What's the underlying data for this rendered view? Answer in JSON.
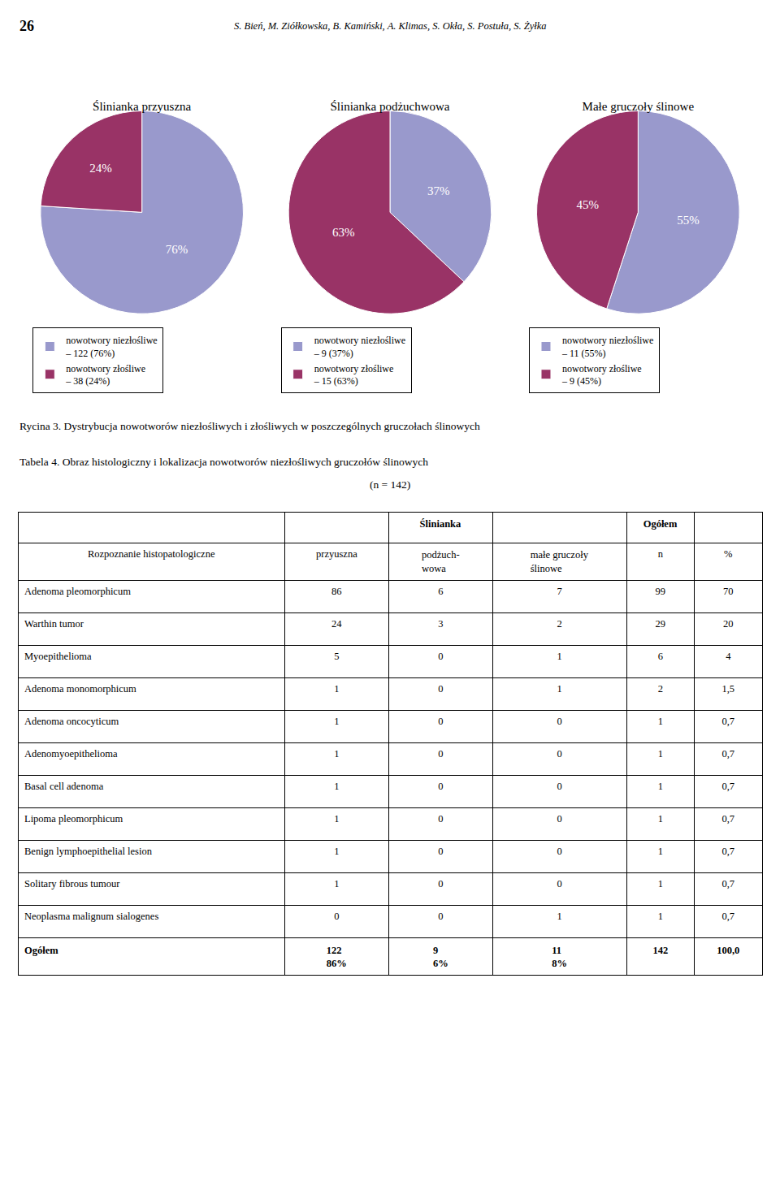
{
  "chart_data": [
    {
      "type": "pie",
      "title": "Ślinianka przyuszna",
      "categories": [
        "nowotwory niezłośliwe\n– 122 (76%)",
        "nowotwory złośliwe\n– 38 (24%)"
      ],
      "values": [
        76,
        24
      ],
      "value_labels": [
        "76%",
        "24%"
      ],
      "colors": [
        "#9999cc",
        "#993366"
      ],
      "legend": "bottom"
    },
    {
      "type": "pie",
      "title": "Ślinianka podżuchwowa",
      "categories": [
        "nowotwory niezłośliwe\n– 9 (37%)",
        "nowotwory złośliwe\n– 15 (63%)"
      ],
      "values": [
        37,
        63
      ],
      "value_labels": [
        "37%",
        "63%"
      ],
      "colors": [
        "#9999cc",
        "#993366"
      ],
      "legend": "bottom"
    },
    {
      "type": "pie",
      "title": "Małe gruczoły ślinowe",
      "categories": [
        "nowotwory niezłośliwe\n– 11 (55%)",
        "nowotwory złośliwe\n– 9 (45%)"
      ],
      "values": [
        55,
        45
      ],
      "value_labels": [
        "55%",
        "45%"
      ],
      "colors": [
        "#9999cc",
        "#993366"
      ],
      "legend": "bottom"
    },
    {
      "type": "table",
      "title": "Tabela 4. Obraz histologiczny i lokalizacja nowotworów niezłośliwych gruczołów ślinowych",
      "subtitle": "(n = 142)",
      "column_groups": [
        {
          "name": "Ślinianka",
          "span": 3
        },
        {
          "name": "Ogółem",
          "span": 2
        }
      ],
      "columns": [
        "Rozpoznanie histopatologiczne",
        "przyuszna",
        "podżuch-\nwowa",
        "małe gruczoły\nślinowe",
        "n",
        "%"
      ],
      "rows": [
        [
          "Adenoma pleomorphicum",
          "86",
          "6",
          "7",
          "99",
          "70"
        ],
        [
          "Warthin tumor",
          "24",
          "3",
          "2",
          "29",
          "20"
        ],
        [
          "Myoepithelioma",
          "5",
          "0",
          "1",
          "6",
          "4"
        ],
        [
          "Adenoma monomorphicum",
          "1",
          "0",
          "1",
          "2",
          "1,5"
        ],
        [
          "Adenoma oncocyticum",
          "1",
          "0",
          "0",
          "1",
          "0,7"
        ],
        [
          "Adenomyoepithelioma",
          "1",
          "0",
          "0",
          "1",
          "0,7"
        ],
        [
          "Basal cell adenoma",
          "1",
          "0",
          "0",
          "1",
          "0,7"
        ],
        [
          "Lipoma pleomorphicum",
          "1",
          "0",
          "0",
          "1",
          "0,7"
        ],
        [
          "Benign lymphoepithelial lesion",
          "1",
          "0",
          "0",
          "1",
          "0,7"
        ],
        [
          "Solitary fibrous tumour",
          "1",
          "0",
          "0",
          "1",
          "0,7"
        ],
        [
          "Neoplasma malignum sialogenes",
          "0",
          "0",
          "1",
          "1",
          "0,7"
        ],
        [
          "Ogółem",
          "122\n86%",
          "9\n6%",
          "11\n8%",
          "142",
          "100,0"
        ]
      ]
    }
  ],
  "annotations": [
    "26",
    "S. Bień, M. Ziółkowska, B. Kamiński, A. Klimas, S. Okła, S. Postuła, S. Żyłka",
    "Rycina 3. Dystrybucja nowotworów niezłośliwych i złośliwych w poszczególnych gruczołach ślinowych"
  ]
}
